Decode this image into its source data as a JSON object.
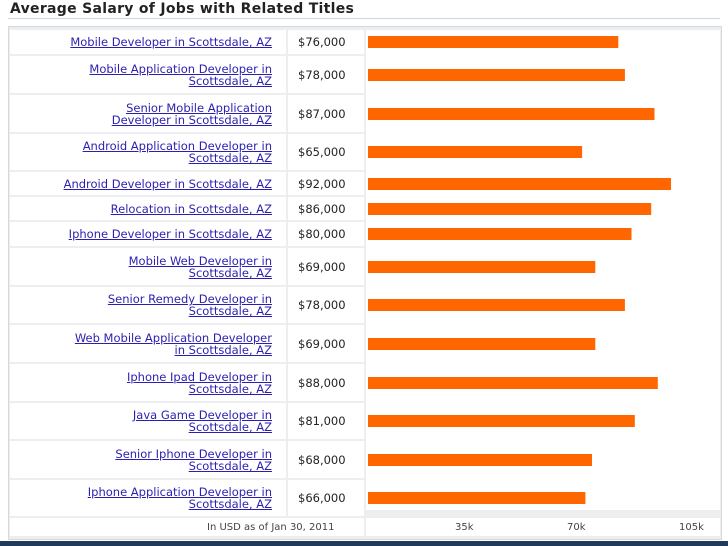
{
  "chart_data": {
    "type": "bar",
    "title": "Average Salary of Jobs with Related Titles",
    "categories": [
      "Mobile Developer in Scottsdale, AZ",
      "Mobile Application Developer in Scottsdale, AZ",
      "Senior Mobile Application Developer in Scottsdale, AZ",
      "Android Application Developer in Scottsdale, AZ",
      "Android Developer in Scottsdale, AZ",
      "Relocation in Scottsdale, AZ",
      "Iphone Developer in Scottsdale, AZ",
      "Mobile Web Developer in Scottsdale, AZ",
      "Senior Remedy Developer in Scottsdale, AZ",
      "Web Mobile Application Developer in Scottsdale, AZ",
      "Iphone Ipad Developer in Scottsdale, AZ",
      "Java Game Developer in Scottsdale, AZ",
      "Senior Iphone Developer in Scottsdale, AZ",
      "Iphone Application Developer in Scottsdale, AZ"
    ],
    "category_lines": [
      [
        "Mobile Developer in Scottsdale, AZ"
      ],
      [
        "Mobile Application Developer in",
        "Scottsdale, AZ"
      ],
      [
        "Senior Mobile Application",
        "Developer in Scottsdale, AZ"
      ],
      [
        "Android Application Developer in",
        "Scottsdale, AZ"
      ],
      [
        "Android Developer in Scottsdale, AZ"
      ],
      [
        "Relocation in Scottsdale, AZ"
      ],
      [
        "Iphone Developer in Scottsdale, AZ"
      ],
      [
        "Mobile Web Developer in",
        "Scottsdale, AZ"
      ],
      [
        "Senior Remedy Developer in",
        "Scottsdale, AZ"
      ],
      [
        "Web Mobile Application Developer",
        "in Scottsdale, AZ"
      ],
      [
        "Iphone Ipad Developer in",
        "Scottsdale, AZ"
      ],
      [
        "Java Game Developer in",
        "Scottsdale, AZ"
      ],
      [
        "Senior Iphone Developer in",
        "Scottsdale, AZ"
      ],
      [
        "Iphone Application Developer in",
        "Scottsdale, AZ"
      ]
    ],
    "values": [
      76000,
      78000,
      87000,
      65000,
      92000,
      86000,
      80000,
      69000,
      78000,
      69000,
      88000,
      81000,
      68000,
      66000
    ],
    "value_labels": [
      "$76,000",
      "$78,000",
      "$87,000",
      "$65,000",
      "$92,000",
      "$86,000",
      "$80,000",
      "$69,000",
      "$78,000",
      "$69,000",
      "$88,000",
      "$81,000",
      "$68,000",
      "$66,000"
    ],
    "xlim": [
      0,
      105000
    ],
    "xticks": [
      35000,
      70000,
      105000
    ],
    "xtick_labels": [
      "35k",
      "70k",
      "105k"
    ],
    "footnote": "In USD as of Jan 30, 2011",
    "bar_color": "#ff6600",
    "link_color": "#2a1fb0",
    "grid": false
  }
}
